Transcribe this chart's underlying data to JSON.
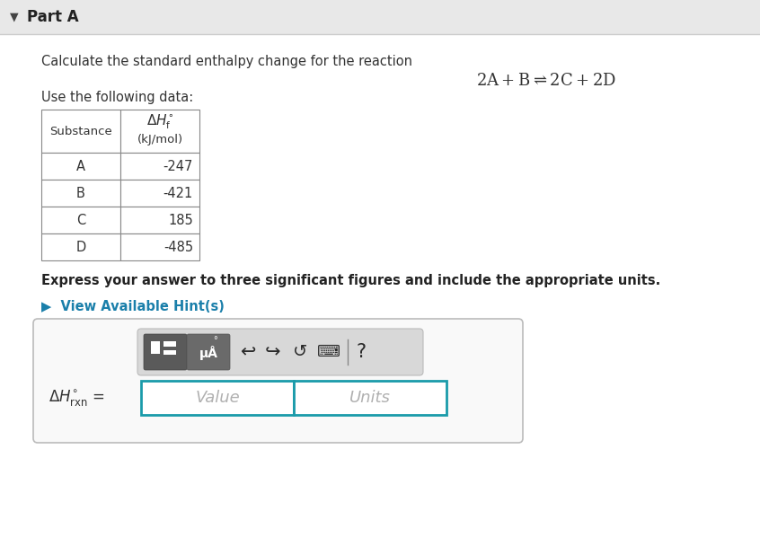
{
  "bg_color": "#f0f0f0",
  "content_bg": "#ffffff",
  "part_a_text": "Part A",
  "problem_text": "Calculate the standard enthalpy change for the reaction",
  "data_text": "Use the following data:",
  "express_text": "Express your answer to three significant figures and include the appropriate units.",
  "hint_text": "▶  View Available Hint(s)",
  "hint_color": "#1a7faa",
  "value_placeholder": "Value",
  "units_placeholder": "Units",
  "table_border_color": "#888888",
  "top_bar_color": "#e8e8e8",
  "top_bar_border": "#cccccc",
  "input_border_color": "#1a9baa",
  "toolbar_bg": "#cccccc",
  "btn1_color": "#666666",
  "btn2_color": "#777777",
  "substances": [
    "A",
    "B",
    "C",
    "D"
  ],
  "values": [
    "-247",
    "-421",
    "185",
    "-485"
  ],
  "outer_box_border": "#bbbbbb",
  "outer_box_bg": "#f9f9f9"
}
